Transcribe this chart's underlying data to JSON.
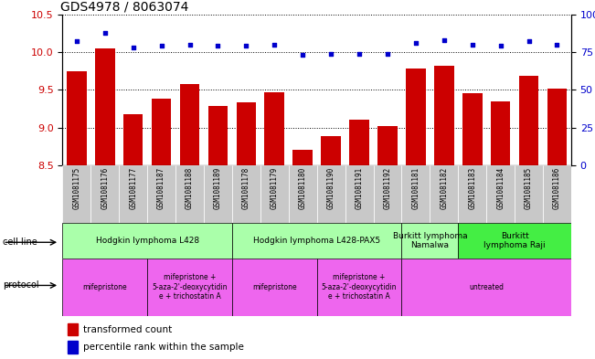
{
  "title": "GDS4978 / 8063074",
  "samples": [
    "GSM1081175",
    "GSM1081176",
    "GSM1081177",
    "GSM1081187",
    "GSM1081188",
    "GSM1081189",
    "GSM1081178",
    "GSM1081179",
    "GSM1081180",
    "GSM1081190",
    "GSM1081191",
    "GSM1081192",
    "GSM1081181",
    "GSM1081182",
    "GSM1081183",
    "GSM1081184",
    "GSM1081185",
    "GSM1081186"
  ],
  "transformed_count": [
    9.75,
    10.05,
    9.18,
    9.38,
    9.58,
    9.28,
    9.33,
    9.47,
    8.7,
    8.88,
    9.1,
    9.02,
    9.78,
    9.82,
    9.45,
    9.35,
    9.68,
    9.52
  ],
  "percentile_rank": [
    82,
    88,
    78,
    79,
    80,
    79,
    79,
    80,
    73,
    74,
    74,
    74,
    81,
    83,
    80,
    79,
    82,
    80
  ],
  "ylim_left": [
    8.5,
    10.5
  ],
  "ylim_right": [
    0,
    100
  ],
  "yticks_left": [
    8.5,
    9.0,
    9.5,
    10.0,
    10.5
  ],
  "yticks_right": [
    0,
    25,
    50,
    75,
    100
  ],
  "bar_color": "#cc0000",
  "dot_color": "#0000cc",
  "tick_bg_color": "#c8c8c8",
  "cell_line_groups": [
    {
      "label": "Hodgkin lymphoma L428",
      "start": 0,
      "end": 5,
      "color": "#aaffaa"
    },
    {
      "label": "Hodgkin lymphoma L428-PAX5",
      "start": 6,
      "end": 11,
      "color": "#aaffaa"
    },
    {
      "label": "Burkitt lymphoma\nNamalwa",
      "start": 12,
      "end": 13,
      "color": "#aaffaa"
    },
    {
      "label": "Burkitt\nlymphoma Raji",
      "start": 14,
      "end": 17,
      "color": "#44ee44"
    }
  ],
  "protocol_groups": [
    {
      "label": "mifepristone",
      "start": 0,
      "end": 2,
      "color": "#ee66ee"
    },
    {
      "label": "mifepristone +\n5-aza-2'-deoxycytidin\ne + trichostatin A",
      "start": 3,
      "end": 5,
      "color": "#ee66ee"
    },
    {
      "label": "mifepristone",
      "start": 6,
      "end": 8,
      "color": "#ee66ee"
    },
    {
      "label": "mifepristone +\n5-aza-2'-deoxycytidin\ne + trichostatin A",
      "start": 9,
      "end": 11,
      "color": "#ee66ee"
    },
    {
      "label": "untreated",
      "start": 12,
      "end": 17,
      "color": "#ee66ee"
    }
  ],
  "legend_transformed": "transformed count",
  "legend_percentile": "percentile rank within the sample"
}
